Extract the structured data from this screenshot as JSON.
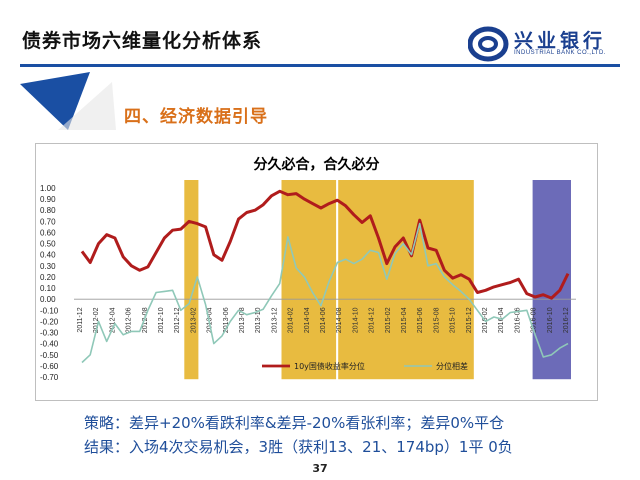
{
  "header": {
    "title": "债券市场六维量化分析体系",
    "brand_name": "兴业银行",
    "brand_sub": "INDUSTRIAL BANK CO.,LTD."
  },
  "section": {
    "title": "四、经济数据引导"
  },
  "chart_data": {
    "type": "line",
    "title": "分久必合，合久必分",
    "y_ticks": [
      "1.00",
      "0.90",
      "0.80",
      "0.70",
      "0.60",
      "0.50",
      "0.40",
      "0.30",
      "0.20",
      "0.10",
      "0.00",
      "-0.10",
      "-0.20",
      "-0.30",
      "-0.40",
      "-0.50",
      "-0.60",
      "-0.70"
    ],
    "ylim": [
      -0.7,
      1.0
    ],
    "x_ticks": [
      "2011-12",
      "2012-02",
      "2012-04",
      "2012-06",
      "2012-08",
      "2012-10",
      "2012-12",
      "2013-02",
      "2013-04",
      "2013-06",
      "2013-08",
      "2013-10",
      "2013-12",
      "2014-02",
      "2014-04",
      "2014-06",
      "2014-08",
      "2014-10",
      "2014-12",
      "2015-02",
      "2015-04",
      "2015-06",
      "2015-08",
      "2015-10",
      "2015-12",
      "2016-02",
      "2016-04",
      "2016-06",
      "2016-08",
      "2016-10",
      "2016-12"
    ],
    "grid": false,
    "legend_position": "bottom",
    "series": [
      {
        "name": "10y国债收益率分位",
        "color": "#b01c1c",
        "values": [
          0.43,
          0.33,
          0.5,
          0.58,
          0.55,
          0.38,
          0.3,
          0.26,
          0.29,
          0.42,
          0.55,
          0.62,
          0.63,
          0.7,
          0.68,
          0.65,
          0.4,
          0.35,
          0.52,
          0.72,
          0.78,
          0.8,
          0.85,
          0.93,
          0.97,
          0.94,
          0.95,
          0.9,
          0.86,
          0.82,
          0.86,
          0.89,
          0.84,
          0.76,
          0.69,
          0.75,
          0.55,
          0.32,
          0.47,
          0.55,
          0.39,
          0.71,
          0.46,
          0.44,
          0.26,
          0.19,
          0.22,
          0.18,
          0.06,
          0.08,
          0.11,
          0.13,
          0.15,
          0.18,
          0.05,
          0.02,
          0.04,
          0.01,
          0.08,
          0.23
        ]
      },
      {
        "name": "分位相差",
        "color": "#8fc8b8",
        "values": [
          -0.57,
          -0.5,
          -0.2,
          -0.38,
          -0.22,
          -0.32,
          -0.29,
          -0.29,
          -0.1,
          0.06,
          0.07,
          0.08,
          -0.1,
          -0.04,
          0.2,
          -0.05,
          -0.4,
          -0.33,
          -0.2,
          -0.1,
          -0.14,
          -0.12,
          -0.09,
          0.03,
          0.14,
          0.56,
          0.28,
          0.2,
          0.06,
          -0.06,
          0.16,
          0.33,
          0.36,
          0.32,
          0.36,
          0.44,
          0.42,
          0.18,
          0.41,
          0.5,
          0.4,
          0.68,
          0.3,
          0.32,
          0.2,
          0.13,
          0.07,
          0.0,
          -0.1,
          -0.2,
          -0.16,
          -0.18,
          -0.12,
          -0.11,
          -0.1,
          -0.32,
          -0.52,
          -0.5,
          -0.44,
          -0.4
        ]
      }
    ],
    "highlights": [
      {
        "from": "2013-01",
        "to": "2013-02",
        "color": "#e0a400"
      },
      {
        "from": "2014-01",
        "to": "2014-07",
        "color": "#e0a400"
      },
      {
        "from": "2014-08",
        "to": "2015-12",
        "color": "#e0a400"
      },
      {
        "from": "2016-08",
        "to": "2016-12",
        "color": "#3b3aa0"
      }
    ]
  },
  "notes": {
    "strategy": "策略：差异+20%看跌利率&差异-20%看张利率；差异0%平仓",
    "result": "结果：入场4次交易机会，3胜（获利13、21、174bp）1平 0负"
  },
  "footer": {
    "page_number": "37"
  },
  "colors": {
    "accent_orange": "#d9701a",
    "brand_blue": "#1a3f8f",
    "text_blue": "#1f4e9a"
  }
}
